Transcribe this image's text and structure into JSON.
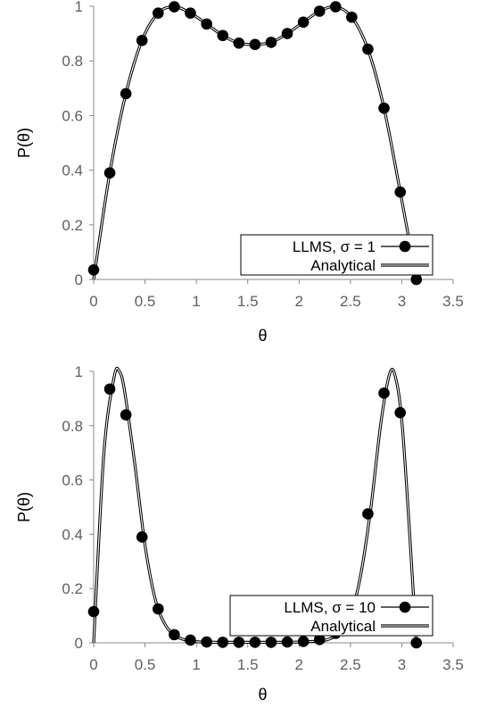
{
  "chart_data": [
    {
      "type": "line",
      "xlabel": "θ",
      "ylabel": "P(θ)",
      "xlim": [
        0,
        3.5
      ],
      "ylim": [
        0,
        1
      ],
      "x_ticks": [
        "0",
        "0.5",
        "1",
        "1.5",
        "2",
        "2.5",
        "3",
        "3.5"
      ],
      "y_ticks": [
        "0",
        "0.2",
        "0.4",
        "0.6",
        "0.8",
        "1"
      ],
      "grid": false,
      "legend_position": "bottom-right",
      "series": [
        {
          "name": "LLMS, σ = 1",
          "style": "markers",
          "x": [
            0,
            0.157,
            0.314,
            0.471,
            0.628,
            0.785,
            0.942,
            1.1,
            1.257,
            1.414,
            1.571,
            1.728,
            1.885,
            2.042,
            2.199,
            2.356,
            2.513,
            2.67,
            2.827,
            2.985,
            3.142
          ],
          "values": [
            0.035,
            0.39,
            0.68,
            0.875,
            0.975,
            0.998,
            0.975,
            0.935,
            0.893,
            0.865,
            0.86,
            0.868,
            0.9,
            0.942,
            0.982,
            0.998,
            0.96,
            0.843,
            0.627,
            0.32,
            0.0
          ]
        },
        {
          "name": "Analytical",
          "style": "double-line",
          "x": [
            0,
            0.157,
            0.314,
            0.471,
            0.628,
            0.785,
            0.942,
            1.1,
            1.257,
            1.414,
            1.571,
            1.728,
            1.885,
            2.042,
            2.199,
            2.356,
            2.513,
            2.67,
            2.827,
            2.985,
            3.142
          ],
          "values": [
            0.0,
            0.39,
            0.68,
            0.875,
            0.975,
            0.998,
            0.975,
            0.935,
            0.893,
            0.865,
            0.86,
            0.868,
            0.9,
            0.942,
            0.982,
            0.998,
            0.96,
            0.843,
            0.627,
            0.32,
            0.0
          ]
        }
      ]
    },
    {
      "type": "line",
      "xlabel": "θ",
      "ylabel": "P(θ)",
      "xlim": [
        0,
        3.5
      ],
      "ylim": [
        0,
        1
      ],
      "x_ticks": [
        "0",
        "0.5",
        "1",
        "1.5",
        "2",
        "2.5",
        "3",
        "3.5"
      ],
      "y_ticks": [
        "0",
        "0.2",
        "0.4",
        "0.6",
        "0.8",
        "1"
      ],
      "grid": false,
      "legend_position": "bottom-right",
      "series": [
        {
          "name": "LLMS, σ = 10",
          "style": "markers",
          "x": [
            0,
            0.157,
            0.314,
            0.471,
            0.628,
            0.785,
            0.942,
            1.1,
            1.257,
            1.414,
            1.571,
            1.728,
            1.885,
            2.042,
            2.199,
            2.356,
            2.513,
            2.67,
            2.827,
            2.985,
            3.142
          ],
          "values": [
            0.115,
            0.935,
            0.84,
            0.39,
            0.125,
            0.03,
            0.01,
            0.003,
            0.002,
            0.002,
            0.002,
            0.002,
            0.003,
            0.005,
            0.012,
            0.035,
            0.155,
            0.475,
            0.92,
            0.848,
            0.0
          ]
        },
        {
          "name": "Analytical",
          "style": "double-line",
          "x": [
            0,
            0.1,
            0.2,
            0.25,
            0.3,
            0.4,
            0.5,
            0.6,
            0.7,
            0.8,
            0.9,
            1.0,
            1.2,
            1.5,
            1.8,
            2.0,
            2.2,
            2.3,
            2.4,
            2.5,
            2.6,
            2.7,
            2.8,
            2.89,
            2.95,
            3.0,
            3.05,
            3.1,
            3.142
          ],
          "values": [
            0.0,
            0.7,
            0.98,
            1.0,
            0.93,
            0.66,
            0.36,
            0.16,
            0.065,
            0.025,
            0.01,
            0.004,
            0.002,
            0.002,
            0.002,
            0.003,
            0.007,
            0.015,
            0.04,
            0.1,
            0.25,
            0.5,
            0.82,
            1.0,
            0.96,
            0.82,
            0.56,
            0.26,
            0.0
          ]
        }
      ]
    }
  ]
}
